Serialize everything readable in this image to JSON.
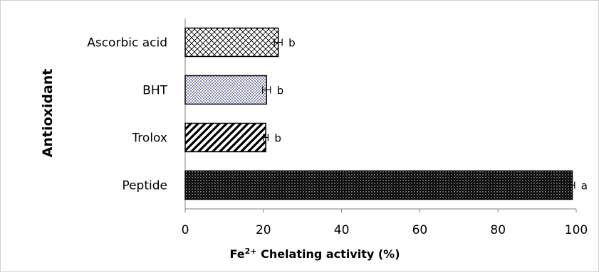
{
  "chart_data": {
    "type": "bar",
    "orientation": "horizontal",
    "ylabel": "Antioxidant",
    "xlabel": {
      "prefix": "Fe",
      "superscript": "2+",
      "suffix": " Chelating activity (%)"
    },
    "xlim": [
      0,
      100
    ],
    "xticks": [
      0,
      20,
      40,
      60,
      80,
      100
    ],
    "grid": false,
    "legend": "none",
    "categories": [
      "Ascorbic acid",
      "BHT",
      "Trolox",
      "Peptide"
    ],
    "values": [
      23.8,
      20.8,
      20.6,
      99.0
    ],
    "errors": [
      1.0,
      1.0,
      0.6,
      0.6
    ],
    "significance": [
      "b",
      "b",
      "b",
      "a"
    ],
    "patterns": [
      "crosshatch",
      "dotted",
      "diagonal",
      "dense-dots"
    ],
    "colors": {
      "bar_outline": "#000000",
      "axis": "#7f7f7f",
      "dot_fill": "#2a2f6a"
    }
  }
}
